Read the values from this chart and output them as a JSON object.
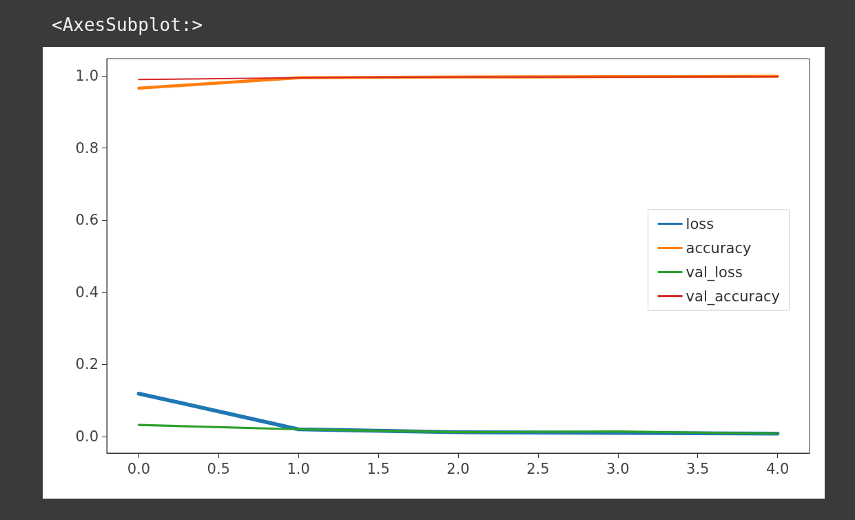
{
  "chart_data": {
    "type": "line",
    "title": "<AxesSubplot:>",
    "x": [
      0,
      1,
      2,
      3,
      4
    ],
    "series": [
      {
        "name": "loss",
        "color": "#1f77b4",
        "values": [
          0.119,
          0.02,
          0.012,
          0.01,
          0.008
        ]
      },
      {
        "name": "accuracy",
        "color": "#ff7f0e",
        "values": [
          0.966,
          0.995,
          0.997,
          0.998,
          0.999
        ]
      },
      {
        "name": "val_loss",
        "color": "#2ca02c",
        "values": [
          0.032,
          0.02,
          0.012,
          0.014,
          0.008
        ]
      },
      {
        "name": "val_accuracy",
        "color": "#d62728",
        "values": [
          0.99,
          0.995,
          0.997,
          0.997,
          0.998
        ]
      }
    ],
    "xlim": [
      -0.2,
      4.2
    ],
    "xticks": [
      {
        "value": 0,
        "label": "0.0"
      },
      0.5,
      {
        "value": 1,
        "label": "1.0"
      },
      1.5,
      {
        "value": 2,
        "label": "2.0"
      },
      2.5,
      {
        "value": 3,
        "label": "3.0"
      },
      3.5,
      {
        "value": 4,
        "label": "4.0"
      }
    ],
    "ylim": [
      -0.046,
      1.048
    ],
    "yticks": [
      {
        "value": 0,
        "label": "0.0"
      },
      0.2,
      0.4,
      0.6,
      0.8,
      {
        "value": 1,
        "label": "1.0"
      }
    ],
    "grid": false,
    "legend": "right",
    "marker": "none",
    "line_style": "solid"
  }
}
